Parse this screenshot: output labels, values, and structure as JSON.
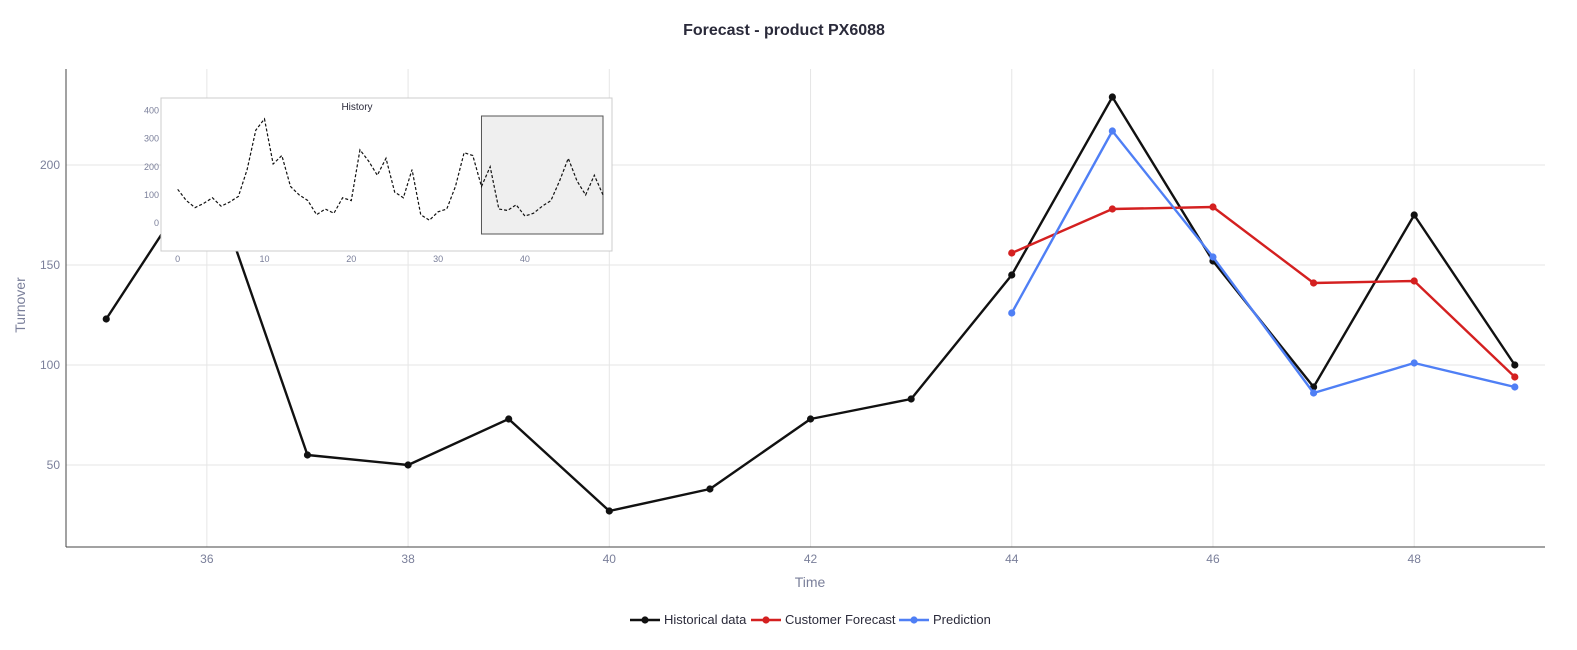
{
  "chart_data": [
    {
      "type": "line",
      "title": "Forecast - product PX6088",
      "xlabel": "Time",
      "ylabel": "Turnover",
      "xlim": [
        34.6,
        49.3
      ],
      "ylim": [
        9,
        248
      ],
      "x_ticks": [
        36,
        38,
        40,
        42,
        44,
        46,
        48
      ],
      "y_ticks": [
        50,
        100,
        150,
        200
      ],
      "grid": true,
      "legend_position": "bottom-center",
      "series": [
        {
          "name": "Historical data",
          "color": "#111111",
          "x": [
            35,
            36,
            37,
            38,
            39,
            40,
            41,
            42,
            43,
            44,
            45,
            46,
            47,
            48,
            49
          ],
          "y": [
            123,
            200,
            55,
            50,
            73,
            27,
            38,
            73,
            83,
            145,
            234,
            152,
            89,
            175,
            100
          ]
        },
        {
          "name": "Customer Forecast",
          "color": "#d42020",
          "x": [
            44,
            45,
            46,
            47,
            48,
            49
          ],
          "y": [
            156,
            178,
            179,
            141,
            142,
            94
          ]
        },
        {
          "name": "Prediction",
          "color": "#4f7ff5",
          "x": [
            44,
            45,
            46,
            47,
            48,
            49
          ],
          "y": [
            126,
            217,
            154,
            86,
            101,
            89
          ]
        }
      ]
    },
    {
      "type": "line",
      "title": "History",
      "xlim": [
        -1,
        49
      ],
      "ylim": [
        -60,
        430
      ],
      "x_ticks": [
        0,
        10,
        20,
        30,
        40
      ],
      "y_ticks": [
        0,
        100,
        200,
        300,
        400
      ],
      "selected_range": [
        35,
        49
      ],
      "series": [
        {
          "line_style": "dashed",
          "color": "#111111",
          "x": [
            0,
            1,
            2,
            3,
            4,
            5,
            6,
            7,
            8,
            9,
            10,
            11,
            12,
            13,
            14,
            15,
            16,
            17,
            18,
            19,
            20,
            21,
            22,
            23,
            24,
            25,
            26,
            27,
            28,
            29,
            30,
            31,
            32,
            33,
            34,
            35,
            36,
            37,
            38,
            39,
            40,
            41,
            42,
            43,
            44,
            45,
            46,
            47,
            48,
            49
          ],
          "y": [
            120,
            80,
            55,
            70,
            90,
            60,
            75,
            95,
            190,
            330,
            370,
            210,
            240,
            130,
            100,
            80,
            30,
            50,
            35,
            90,
            80,
            260,
            220,
            170,
            230,
            110,
            90,
            190,
            30,
            10,
            40,
            50,
            130,
            250,
            240,
            130,
            200,
            50,
            45,
            65,
            25,
            35,
            60,
            80,
            150,
            230,
            150,
            100,
            170,
            100
          ]
        }
      ]
    }
  ]
}
